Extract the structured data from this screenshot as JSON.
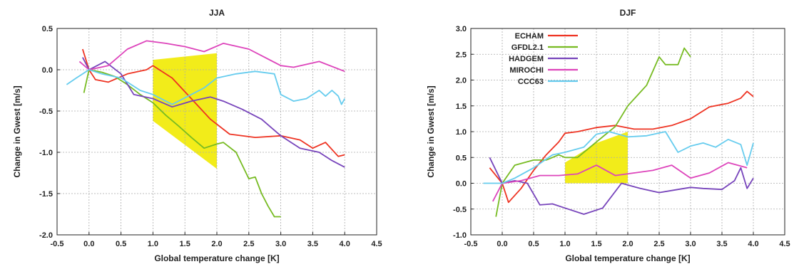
{
  "colors": {
    "ECHAM": "#ee3322",
    "GFDL2.1": "#77bb22",
    "HADGEM": "#7744bb",
    "MIROCHI": "#dd44bb",
    "CCC63": "#66ccee",
    "shade": "#f2ec1a",
    "grid": "#aaaaaa",
    "axis": "#222222"
  },
  "chart_data": [
    {
      "type": "line",
      "title": "JJA",
      "xlabel": "Global temperature change [K]",
      "ylabel": "Change in Gwest [m/s]",
      "xlim": [
        -0.5,
        4.5
      ],
      "ylim": [
        -2.0,
        0.5
      ],
      "xticks": [
        -0.5,
        0.0,
        0.5,
        1.0,
        1.5,
        2.0,
        2.5,
        3.0,
        3.5,
        4.0,
        4.5
      ],
      "xtick_labels": [
        "-0.5",
        "0.0",
        "0.5",
        "1.0",
        "1.5",
        "2.0",
        "2.5",
        "3.0",
        "3.5",
        "4.0",
        "4.5"
      ],
      "yticks": [
        -2.0,
        -1.5,
        -1.0,
        -0.5,
        0.0,
        0.5
      ],
      "ytick_labels": [
        "-2.0",
        "-1.5",
        "-1.0",
        "-0.5",
        "0.0",
        "0.5"
      ],
      "grid": true,
      "legend": "none",
      "shaded_region": [
        [
          1.0,
          -0.3
        ],
        [
          1.0,
          0.12
        ],
        [
          2.0,
          0.2
        ],
        [
          2.0,
          -1.2
        ],
        [
          1.0,
          -0.62
        ]
      ],
      "series": [
        {
          "name": "ECHAM",
          "x": [
            -0.1,
            0.0,
            0.1,
            0.3,
            0.6,
            0.9,
            1.0,
            1.3,
            1.6,
            1.9,
            2.2,
            2.6,
            3.0,
            3.3,
            3.5,
            3.7,
            3.9,
            4.0
          ],
          "y": [
            0.25,
            0.0,
            -0.12,
            -0.15,
            -0.05,
            0.0,
            0.05,
            -0.1,
            -0.35,
            -0.6,
            -0.78,
            -0.82,
            -0.8,
            -0.85,
            -0.95,
            -0.88,
            -1.05,
            -1.03
          ]
        },
        {
          "name": "GFDL2.1",
          "x": [
            -0.08,
            0.0,
            0.2,
            0.4,
            0.6,
            0.8,
            1.0,
            1.2,
            1.4,
            1.6,
            1.8,
            2.0,
            2.1,
            2.3,
            2.5,
            2.6,
            2.7,
            2.8,
            2.9,
            3.0
          ],
          "y": [
            -0.28,
            0.0,
            -0.03,
            -0.08,
            -0.18,
            -0.3,
            -0.4,
            -0.55,
            -0.68,
            -0.82,
            -0.95,
            -0.9,
            -0.88,
            -1.0,
            -1.32,
            -1.3,
            -1.5,
            -1.65,
            -1.78,
            -1.78
          ]
        },
        {
          "name": "HADGEM",
          "x": [
            -0.1,
            0.0,
            0.25,
            0.5,
            0.7,
            1.0,
            1.3,
            1.6,
            1.9,
            2.1,
            2.4,
            2.7,
            3.0,
            3.3,
            3.6,
            3.8,
            4.0
          ],
          "y": [
            0.15,
            0.0,
            0.1,
            -0.05,
            -0.3,
            -0.35,
            -0.45,
            -0.38,
            -0.33,
            -0.38,
            -0.48,
            -0.6,
            -0.8,
            -0.95,
            -1.0,
            -1.1,
            -1.18
          ]
        },
        {
          "name": "MIROCHI",
          "x": [
            -0.15,
            0.0,
            0.3,
            0.6,
            0.9,
            1.2,
            1.5,
            1.8,
            2.1,
            2.5,
            3.0,
            3.2,
            3.6,
            4.0
          ],
          "y": [
            0.1,
            0.0,
            0.05,
            0.25,
            0.35,
            0.32,
            0.28,
            0.22,
            0.32,
            0.25,
            0.05,
            0.03,
            0.1,
            -0.02
          ]
        },
        {
          "name": "CCC63",
          "x": [
            -0.35,
            -0.2,
            0.0,
            0.2,
            0.5,
            0.8,
            1.0,
            1.3,
            1.6,
            1.8,
            2.0,
            2.3,
            2.6,
            2.9,
            3.0,
            3.2,
            3.4,
            3.6,
            3.7,
            3.8,
            3.9,
            3.95,
            4.0
          ],
          "y": [
            -0.18,
            -0.1,
            0.0,
            -0.05,
            -0.1,
            -0.25,
            -0.3,
            -0.42,
            -0.3,
            -0.22,
            -0.1,
            -0.05,
            -0.02,
            -0.05,
            -0.3,
            -0.38,
            -0.35,
            -0.25,
            -0.32,
            -0.25,
            -0.32,
            -0.42,
            -0.35
          ]
        }
      ]
    },
    {
      "type": "line",
      "title": "DJF",
      "xlabel": "Global temperature change [K]",
      "ylabel": "Change in Gwest [m/s]",
      "xlim": [
        -0.5,
        4.5
      ],
      "ylim": [
        -1.0,
        3.0
      ],
      "xticks": [
        -0.5,
        0.0,
        0.5,
        1.0,
        1.5,
        2.0,
        2.5,
        3.0,
        3.5,
        4.0,
        4.5
      ],
      "xtick_labels": [
        "-0.5",
        "0.0",
        "0.5",
        "1.0",
        "1.5",
        "2.0",
        "2.5",
        "3.0",
        "3.5",
        "4.0",
        "4.5"
      ],
      "yticks": [
        -1.0,
        -0.5,
        0.0,
        0.5,
        1.0,
        1.5,
        2.0,
        2.5,
        3.0
      ],
      "ytick_labels": [
        "-1.0",
        "-0.5",
        "0.0",
        "0.5",
        "1.0",
        "1.5",
        "2.0",
        "2.5",
        "3.0"
      ],
      "grid": true,
      "legend": "top-left",
      "shaded_region": [
        [
          1.0,
          0.0
        ],
        [
          1.0,
          0.4
        ],
        [
          1.5,
          0.78
        ],
        [
          2.0,
          1.0
        ],
        [
          2.0,
          0.0
        ]
      ],
      "series": [
        {
          "name": "ECHAM",
          "x": [
            -0.2,
            0.0,
            0.1,
            0.3,
            0.5,
            0.7,
            0.9,
            1.0,
            1.2,
            1.5,
            1.8,
            2.1,
            2.4,
            2.7,
            3.0,
            3.3,
            3.6,
            3.8,
            3.9,
            4.0
          ],
          "y": [
            0.3,
            0.0,
            -0.37,
            -0.1,
            0.25,
            0.55,
            0.8,
            0.97,
            1.0,
            1.08,
            1.12,
            1.05,
            1.05,
            1.12,
            1.25,
            1.48,
            1.55,
            1.65,
            1.78,
            1.68
          ]
        },
        {
          "name": "GFDL2.1",
          "x": [
            -0.1,
            0.0,
            0.2,
            0.5,
            0.7,
            0.9,
            1.0,
            1.2,
            1.5,
            1.8,
            2.0,
            2.3,
            2.5,
            2.6,
            2.8,
            2.9,
            3.0
          ],
          "y": [
            -0.65,
            0.0,
            0.35,
            0.45,
            0.45,
            0.55,
            0.5,
            0.5,
            0.8,
            1.1,
            1.5,
            1.9,
            2.45,
            2.3,
            2.3,
            2.62,
            2.45
          ]
        },
        {
          "name": "HADGEM",
          "x": [
            -0.2,
            0.0,
            0.2,
            0.4,
            0.6,
            0.8,
            1.0,
            1.3,
            1.6,
            1.9,
            2.2,
            2.5,
            2.8,
            3.0,
            3.2,
            3.5,
            3.7,
            3.8,
            3.9,
            4.0
          ],
          "y": [
            0.5,
            0.0,
            0.05,
            0.0,
            -0.42,
            -0.4,
            -0.48,
            -0.6,
            -0.48,
            0.0,
            -0.1,
            -0.18,
            -0.12,
            -0.08,
            -0.1,
            -0.12,
            0.05,
            0.3,
            -0.1,
            0.1
          ]
        },
        {
          "name": "MIROCHI",
          "x": [
            -0.15,
            0.0,
            0.3,
            0.6,
            0.9,
            1.2,
            1.5,
            1.8,
            2.1,
            2.4,
            2.7,
            3.0,
            3.3,
            3.6,
            3.9
          ],
          "y": [
            -0.35,
            0.0,
            0.05,
            0.15,
            0.15,
            0.18,
            0.35,
            0.15,
            0.2,
            0.25,
            0.35,
            0.1,
            0.2,
            0.4,
            0.3
          ]
        },
        {
          "name": "CCC63",
          "x": [
            -0.3,
            0.0,
            0.2,
            0.5,
            0.8,
            1.0,
            1.3,
            1.5,
            1.7,
            2.0,
            2.3,
            2.6,
            2.8,
            3.0,
            3.2,
            3.4,
            3.6,
            3.8,
            3.9,
            4.0
          ],
          "y": [
            0.0,
            0.0,
            0.1,
            0.3,
            0.55,
            0.6,
            0.7,
            0.95,
            1.0,
            0.9,
            0.92,
            1.0,
            0.6,
            0.72,
            0.78,
            0.7,
            0.85,
            0.75,
            0.35,
            0.78
          ]
        }
      ]
    }
  ]
}
